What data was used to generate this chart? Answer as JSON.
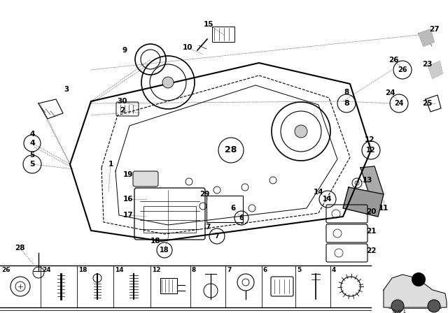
{
  "bg_color": "#ffffff",
  "line_color": "#000000",
  "scale_text": "J1:0 1"
}
